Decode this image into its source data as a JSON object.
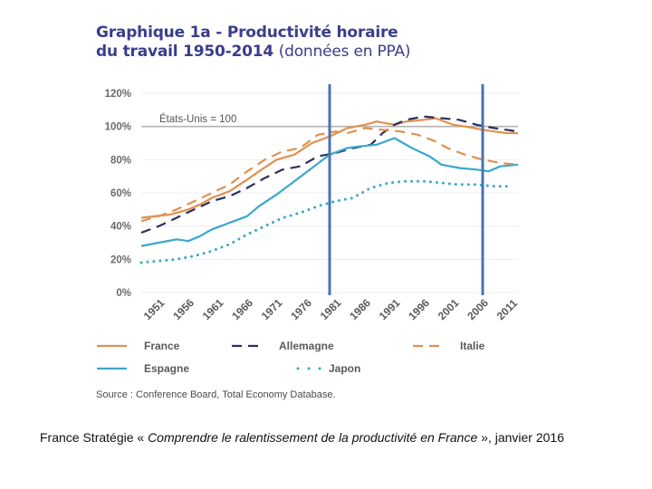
{
  "title": {
    "line1": "Graphique 1a - Productivité horaire",
    "line2_bold": "du travail 1950-2014",
    "line2_normal": "(données en PPA)"
  },
  "source": "Source : Conference Board, Total Economy Database.",
  "caption": {
    "prefix": "France Stratégie « ",
    "title": "Comprendre le ralentissement de la productivité en France",
    "suffix": " », janvier 2016"
  },
  "colors": {
    "france": "#e0914f",
    "allemagne": "#2d2f5c",
    "italie": "#e0914f",
    "espagne": "#3aa7cc",
    "japon": "#3aa7cc",
    "reference": "#b3b3b3",
    "markers": "#4a73b0",
    "title": "#3a3d8c"
  },
  "chart_data": {
    "type": "line",
    "title": "Graphique 1a - Productivité horaire du travail 1950-2014 (données en PPA)",
    "xlabel": "",
    "ylabel": "",
    "xlim": [
      1950,
      2014
    ],
    "ylim": [
      0,
      120
    ],
    "yticks": [
      0,
      20,
      40,
      60,
      80,
      100,
      120
    ],
    "ytick_labels": [
      "0%",
      "20%",
      "40%",
      "60%",
      "80%",
      "100%",
      "120%"
    ],
    "xticks": [
      1951,
      1956,
      1961,
      1966,
      1971,
      1976,
      1981,
      1986,
      1991,
      1996,
      2001,
      2006,
      2011
    ],
    "xtick_labels": [
      "1951",
      "1956",
      "1961",
      "1966",
      "1971",
      "1976",
      "1981",
      "1986",
      "1991",
      "1996",
      "2001",
      "2006",
      "2011"
    ],
    "reference_line": {
      "value": 100,
      "label": "États-Unis = 100"
    },
    "vertical_markers": [
      1982,
      2008
    ],
    "legend": "bottom",
    "series": [
      {
        "name": "France",
        "style": "solid",
        "color": "#e0914f",
        "x": [
          1950,
          1955,
          1958,
          1960,
          1962,
          1965,
          1968,
          1970,
          1973,
          1976,
          1979,
          1982,
          1985,
          1988,
          1990,
          1993,
          1995,
          1998,
          2000,
          2003,
          2005,
          2008,
          2010,
          2012,
          2014
        ],
        "values": [
          45,
          47,
          50,
          53,
          57,
          61,
          68,
          73,
          80,
          83,
          90,
          94,
          99,
          101,
          103,
          101,
          103,
          104,
          105,
          101,
          100,
          98,
          97,
          96,
          96
        ]
      },
      {
        "name": "Allemagne",
        "style": "dashed",
        "color": "#2d2f5c",
        "x": [
          1950,
          1953,
          1956,
          1959,
          1962,
          1965,
          1968,
          1971,
          1974,
          1977,
          1980,
          1983,
          1986,
          1989,
          1991,
          1993,
          1995,
          1998,
          2001,
          2004,
          2007,
          2010,
          2012,
          2014
        ],
        "values": [
          36,
          40,
          45,
          50,
          55,
          58,
          63,
          69,
          74,
          76,
          82,
          84,
          87,
          89,
          96,
          101,
          104,
          106,
          105,
          104,
          101,
          99,
          98,
          97
        ]
      },
      {
        "name": "Italie",
        "style": "dashed",
        "color": "#e0914f",
        "x": [
          1950,
          1953,
          1956,
          1959,
          1962,
          1965,
          1968,
          1971,
          1974,
          1977,
          1980,
          1983,
          1985,
          1988,
          1991,
          1994,
          1997,
          2000,
          2002,
          2005,
          2008,
          2011,
          2014
        ],
        "values": [
          43,
          46,
          50,
          55,
          60,
          65,
          73,
          80,
          85,
          87,
          95,
          97,
          96,
          99,
          98,
          97,
          95,
          91,
          87,
          83,
          80,
          78,
          77
        ]
      },
      {
        "name": "Espagne",
        "style": "solid",
        "color": "#3aa7cc",
        "x": [
          1950,
          1953,
          1956,
          1958,
          1960,
          1962,
          1965,
          1968,
          1970,
          1973,
          1976,
          1979,
          1982,
          1985,
          1987,
          1990,
          1993,
          1996,
          1999,
          2001,
          2004,
          2007,
          2009,
          2011,
          2014
        ],
        "values": [
          28,
          30,
          32,
          31,
          34,
          38,
          42,
          46,
          52,
          59,
          67,
          75,
          83,
          87,
          88,
          89,
          93,
          87,
          82,
          77,
          75,
          74,
          73,
          76,
          77
        ]
      },
      {
        "name": "Japon",
        "style": "dotted",
        "color": "#3aa7cc",
        "x": [
          1950,
          1953,
          1956,
          1959,
          1962,
          1965,
          1968,
          1971,
          1974,
          1977,
          1980,
          1983,
          1986,
          1989,
          1992,
          1995,
          1998,
          2001,
          2004,
          2007,
          2010,
          2013
        ],
        "values": [
          18,
          19,
          20,
          22,
          25,
          29,
          35,
          40,
          45,
          48,
          52,
          55,
          57,
          63,
          66,
          67,
          67,
          66,
          65,
          65,
          64,
          64
        ]
      }
    ]
  }
}
